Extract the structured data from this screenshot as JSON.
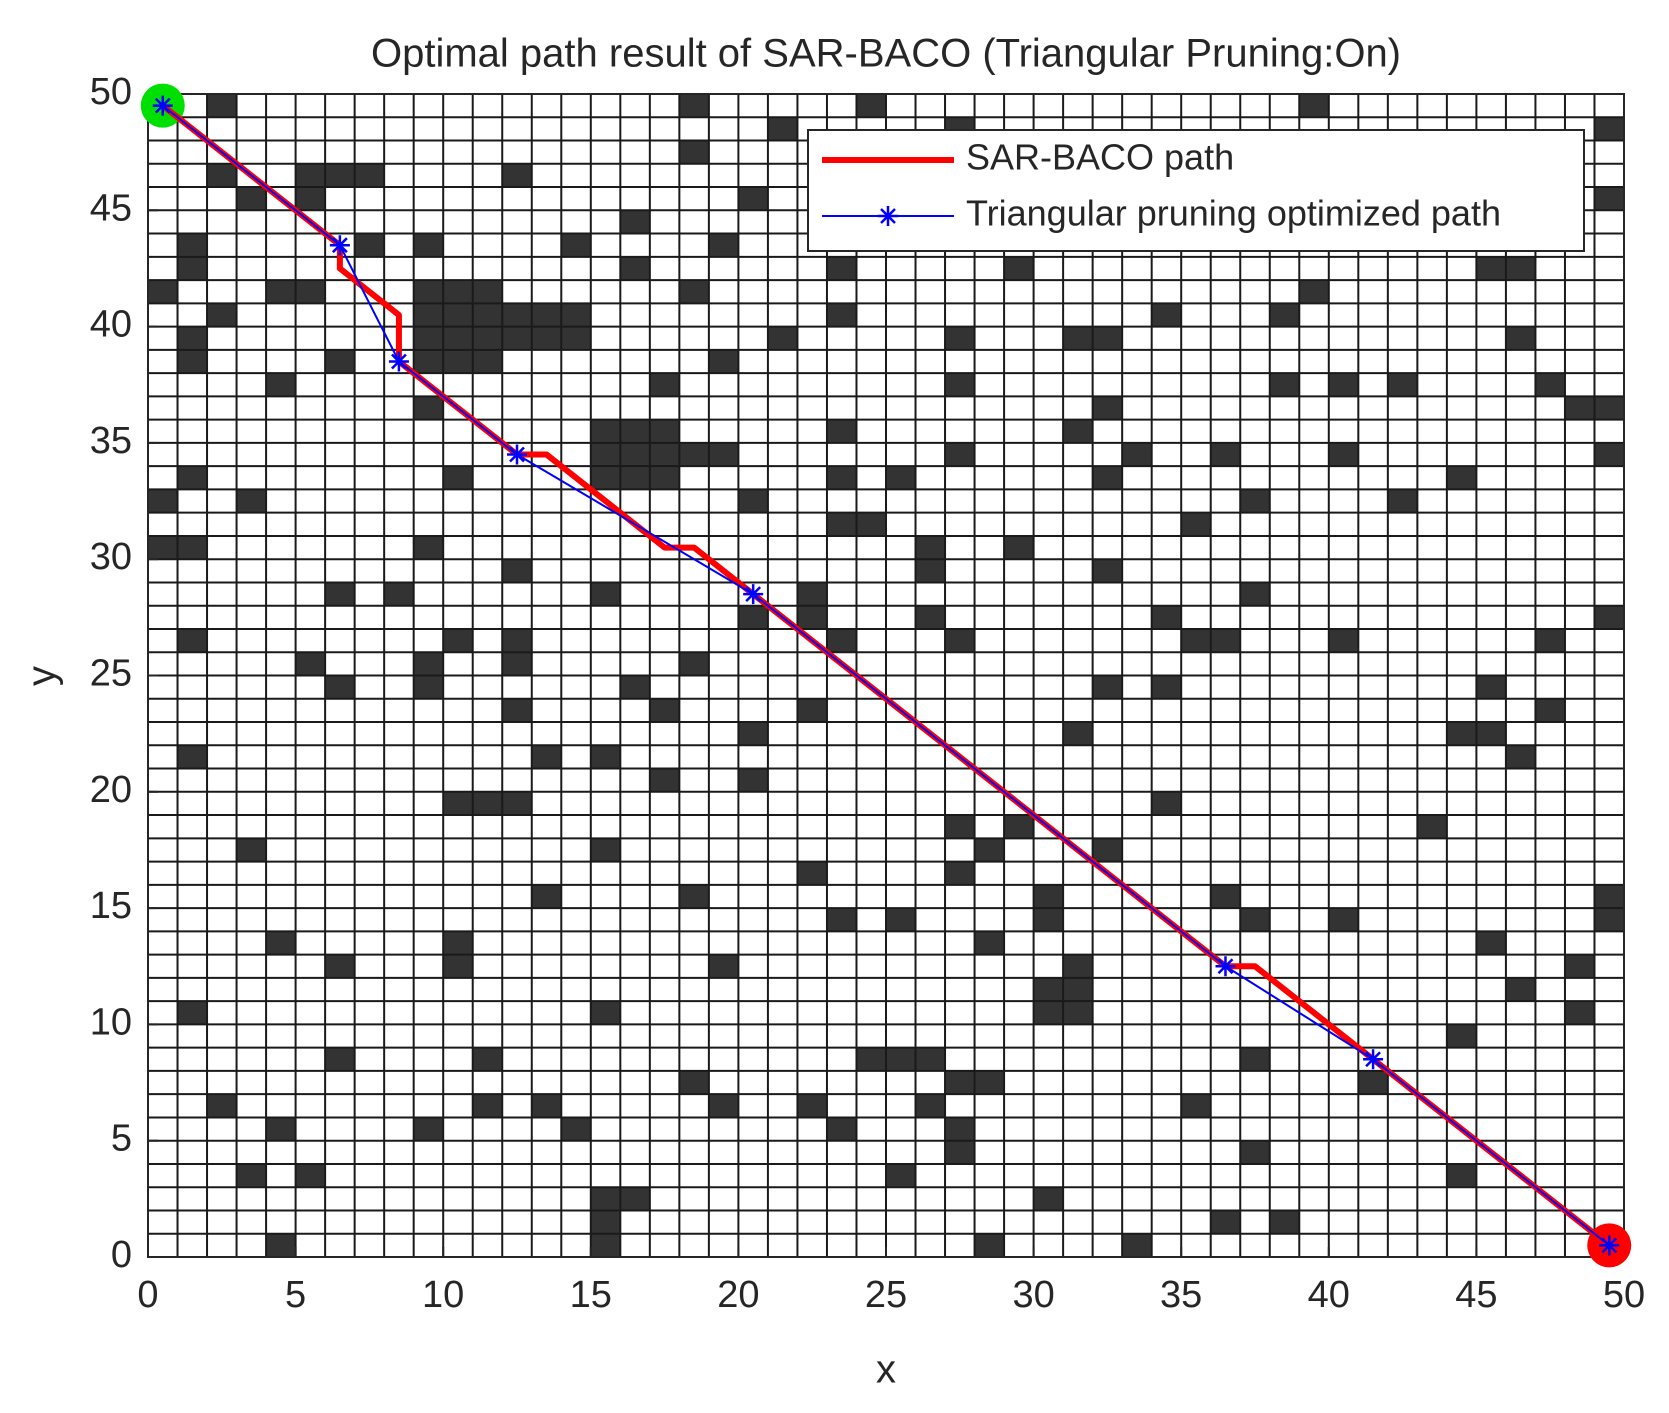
{
  "chart_data": {
    "type": "path-map",
    "title": "Optimal path result of SAR-BACO (Triangular Pruning:On)",
    "x_label": "x",
    "y_label": "y",
    "xlim": [
      0,
      50
    ],
    "ylim": [
      0,
      50
    ],
    "xticks": [
      0,
      5,
      10,
      15,
      20,
      25,
      30,
      35,
      40,
      45,
      50
    ],
    "yticks": [
      0,
      5,
      10,
      15,
      20,
      25,
      30,
      35,
      40,
      45,
      50
    ],
    "grid": true,
    "grid_step": 1,
    "legend": "northeast",
    "obstacle_color": "#333333",
    "obstacles": [
      [
        2,
        49
      ],
      [
        18,
        49
      ],
      [
        24,
        49
      ],
      [
        39,
        49
      ],
      [
        21,
        48
      ],
      [
        27,
        48
      ],
      [
        49,
        48
      ],
      [
        18,
        47
      ],
      [
        2,
        46
      ],
      [
        5,
        46
      ],
      [
        6,
        46
      ],
      [
        7,
        46
      ],
      [
        12,
        46
      ],
      [
        3,
        45
      ],
      [
        5,
        45
      ],
      [
        20,
        45
      ],
      [
        49,
        45
      ],
      [
        16,
        44
      ],
      [
        1,
        43
      ],
      [
        7,
        43
      ],
      [
        9,
        43
      ],
      [
        14,
        43
      ],
      [
        19,
        43
      ],
      [
        1,
        42
      ],
      [
        16,
        42
      ],
      [
        23,
        42
      ],
      [
        29,
        42
      ],
      [
        45,
        42
      ],
      [
        46,
        42
      ],
      [
        0,
        41
      ],
      [
        4,
        41
      ],
      [
        5,
        41
      ],
      [
        9,
        41
      ],
      [
        10,
        41
      ],
      [
        11,
        41
      ],
      [
        18,
        41
      ],
      [
        39,
        41
      ],
      [
        2,
        40
      ],
      [
        9,
        40
      ],
      [
        10,
        40
      ],
      [
        11,
        40
      ],
      [
        12,
        40
      ],
      [
        13,
        40
      ],
      [
        14,
        40
      ],
      [
        23,
        40
      ],
      [
        34,
        40
      ],
      [
        38,
        40
      ],
      [
        1,
        39
      ],
      [
        9,
        39
      ],
      [
        10,
        39
      ],
      [
        11,
        39
      ],
      [
        12,
        39
      ],
      [
        13,
        39
      ],
      [
        14,
        39
      ],
      [
        21,
        39
      ],
      [
        27,
        39
      ],
      [
        31,
        39
      ],
      [
        32,
        39
      ],
      [
        46,
        39
      ],
      [
        1,
        38
      ],
      [
        6,
        38
      ],
      [
        9,
        38
      ],
      [
        10,
        38
      ],
      [
        11,
        38
      ],
      [
        19,
        38
      ],
      [
        4,
        37
      ],
      [
        17,
        37
      ],
      [
        27,
        37
      ],
      [
        38,
        37
      ],
      [
        40,
        37
      ],
      [
        42,
        37
      ],
      [
        47,
        37
      ],
      [
        9,
        36
      ],
      [
        32,
        36
      ],
      [
        48,
        36
      ],
      [
        49,
        36
      ],
      [
        15,
        35
      ],
      [
        16,
        35
      ],
      [
        17,
        35
      ],
      [
        23,
        35
      ],
      [
        31,
        35
      ],
      [
        15,
        34
      ],
      [
        16,
        34
      ],
      [
        17,
        34
      ],
      [
        18,
        34
      ],
      [
        19,
        34
      ],
      [
        27,
        34
      ],
      [
        33,
        34
      ],
      [
        36,
        34
      ],
      [
        40,
        34
      ],
      [
        49,
        34
      ],
      [
        1,
        33
      ],
      [
        10,
        33
      ],
      [
        15,
        33
      ],
      [
        16,
        33
      ],
      [
        17,
        33
      ],
      [
        23,
        33
      ],
      [
        25,
        33
      ],
      [
        32,
        33
      ],
      [
        44,
        33
      ],
      [
        0,
        32
      ],
      [
        3,
        32
      ],
      [
        20,
        32
      ],
      [
        37,
        32
      ],
      [
        42,
        32
      ],
      [
        23,
        31
      ],
      [
        24,
        31
      ],
      [
        35,
        31
      ],
      [
        0,
        30
      ],
      [
        1,
        30
      ],
      [
        9,
        30
      ],
      [
        26,
        30
      ],
      [
        29,
        30
      ],
      [
        12,
        29
      ],
      [
        26,
        29
      ],
      [
        32,
        29
      ],
      [
        6,
        28
      ],
      [
        8,
        28
      ],
      [
        15,
        28
      ],
      [
        22,
        28
      ],
      [
        37,
        28
      ],
      [
        20,
        27
      ],
      [
        22,
        27
      ],
      [
        26,
        27
      ],
      [
        34,
        27
      ],
      [
        49,
        27
      ],
      [
        1,
        26
      ],
      [
        10,
        26
      ],
      [
        12,
        26
      ],
      [
        23,
        26
      ],
      [
        27,
        26
      ],
      [
        35,
        26
      ],
      [
        36,
        26
      ],
      [
        40,
        26
      ],
      [
        47,
        26
      ],
      [
        5,
        25
      ],
      [
        9,
        25
      ],
      [
        12,
        25
      ],
      [
        18,
        25
      ],
      [
        6,
        24
      ],
      [
        9,
        24
      ],
      [
        16,
        24
      ],
      [
        32,
        24
      ],
      [
        34,
        24
      ],
      [
        45,
        24
      ],
      [
        12,
        23
      ],
      [
        17,
        23
      ],
      [
        22,
        23
      ],
      [
        47,
        23
      ],
      [
        20,
        22
      ],
      [
        31,
        22
      ],
      [
        44,
        22
      ],
      [
        45,
        22
      ],
      [
        1,
        21
      ],
      [
        13,
        21
      ],
      [
        15,
        21
      ],
      [
        46,
        21
      ],
      [
        17,
        20
      ],
      [
        20,
        20
      ],
      [
        10,
        19
      ],
      [
        11,
        19
      ],
      [
        12,
        19
      ],
      [
        34,
        19
      ],
      [
        27,
        18
      ],
      [
        29,
        18
      ],
      [
        43,
        18
      ],
      [
        3,
        17
      ],
      [
        15,
        17
      ],
      [
        28,
        17
      ],
      [
        32,
        17
      ],
      [
        22,
        16
      ],
      [
        27,
        16
      ],
      [
        13,
        15
      ],
      [
        18,
        15
      ],
      [
        30,
        15
      ],
      [
        36,
        15
      ],
      [
        49,
        15
      ],
      [
        23,
        14
      ],
      [
        25,
        14
      ],
      [
        30,
        14
      ],
      [
        37,
        14
      ],
      [
        40,
        14
      ],
      [
        49,
        14
      ],
      [
        4,
        13
      ],
      [
        10,
        13
      ],
      [
        28,
        13
      ],
      [
        45,
        13
      ],
      [
        6,
        12
      ],
      [
        10,
        12
      ],
      [
        19,
        12
      ],
      [
        31,
        12
      ],
      [
        48,
        12
      ],
      [
        30,
        11
      ],
      [
        31,
        11
      ],
      [
        46,
        11
      ],
      [
        1,
        10
      ],
      [
        15,
        10
      ],
      [
        30,
        10
      ],
      [
        31,
        10
      ],
      [
        48,
        10
      ],
      [
        44,
        9
      ],
      [
        6,
        8
      ],
      [
        11,
        8
      ],
      [
        24,
        8
      ],
      [
        25,
        8
      ],
      [
        26,
        8
      ],
      [
        37,
        8
      ],
      [
        18,
        7
      ],
      [
        27,
        7
      ],
      [
        28,
        7
      ],
      [
        41,
        7
      ],
      [
        2,
        6
      ],
      [
        11,
        6
      ],
      [
        13,
        6
      ],
      [
        19,
        6
      ],
      [
        22,
        6
      ],
      [
        26,
        6
      ],
      [
        35,
        6
      ],
      [
        4,
        5
      ],
      [
        9,
        5
      ],
      [
        14,
        5
      ],
      [
        23,
        5
      ],
      [
        27,
        5
      ],
      [
        27,
        4
      ],
      [
        37,
        4
      ],
      [
        3,
        3
      ],
      [
        5,
        3
      ],
      [
        25,
        3
      ],
      [
        44,
        3
      ],
      [
        15,
        2
      ],
      [
        16,
        2
      ],
      [
        30,
        2
      ],
      [
        15,
        1
      ],
      [
        36,
        1
      ],
      [
        38,
        1
      ],
      [
        4,
        0
      ],
      [
        15,
        0
      ],
      [
        28,
        0
      ],
      [
        33,
        0
      ]
    ],
    "start_point": {
      "x": 0.5,
      "y": 49.5,
      "color": "#00e000"
    },
    "end_point": {
      "x": 49.5,
      "y": 0.5,
      "color": "#ff0000"
    },
    "series": [
      {
        "name": "SAR-BACO path",
        "color": "#ff0000",
        "x": [
          0.5,
          6.5,
          6.5,
          7.5,
          8.5,
          8.5,
          12.5,
          13.5,
          17.5,
          18.5,
          20.5,
          36.5,
          37.5,
          41.5,
          49.5
        ],
        "y": [
          49.5,
          43.5,
          42.5,
          41.5,
          40.5,
          38.5,
          34.5,
          34.5,
          30.5,
          30.5,
          28.5,
          12.5,
          12.5,
          8.5,
          0.5
        ]
      },
      {
        "name": "Triangular pruning optimized path",
        "color": "#0000ff",
        "marker": "asterisk",
        "x": [
          0.5,
          6.5,
          8.5,
          12.5,
          20.5,
          36.5,
          41.5,
          49.5
        ],
        "y": [
          49.5,
          43.5,
          38.5,
          34.5,
          28.5,
          12.5,
          8.5,
          0.5
        ]
      }
    ]
  }
}
